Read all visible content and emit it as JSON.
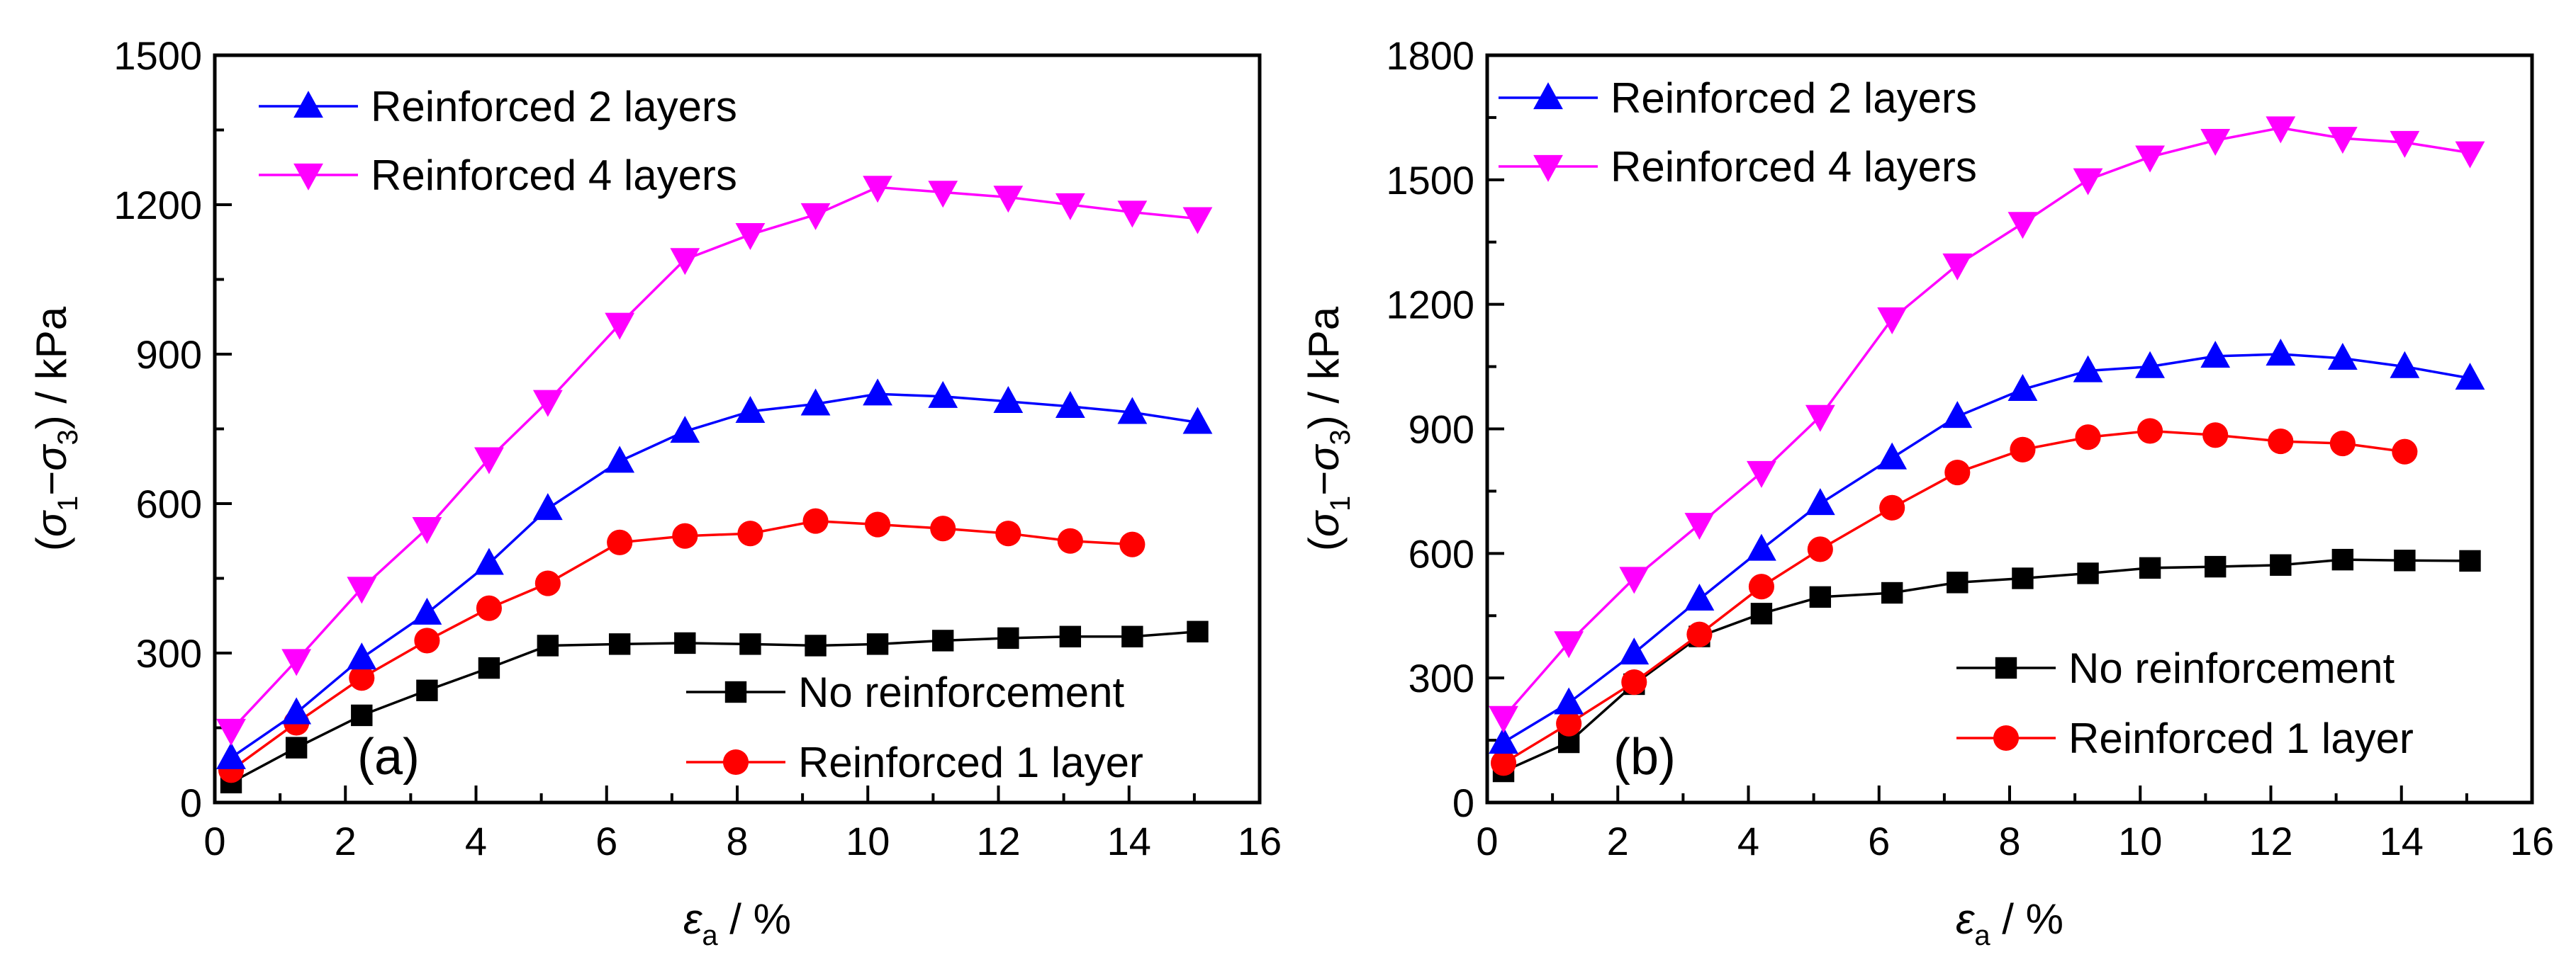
{
  "chart_data": [
    {
      "type": "line",
      "panel_label": "(a)",
      "xlabel": "εa / %",
      "ylabel": "(σ1−σ3) / kPa",
      "xlim": [
        0,
        16
      ],
      "ylim": [
        0,
        1500
      ],
      "xticks": [
        0,
        2,
        4,
        6,
        8,
        10,
        12,
        14,
        16
      ],
      "yticks": [
        0,
        300,
        600,
        900,
        1200,
        1500
      ],
      "legend_top": [
        "Reinforced 2 layers",
        "Reinforced 4 layers"
      ],
      "legend_bottom": [
        "No reinforcement",
        "Reinforced 1 layer"
      ],
      "series": [
        {
          "name": "No reinforcement",
          "color": "#000000",
          "marker": "square",
          "x": [
            0.25,
            1.25,
            2.25,
            3.25,
            4.2,
            5.1,
            6.2,
            7.2,
            8.2,
            9.2,
            10.15,
            11.15,
            12.15,
            13.1,
            14.05,
            15.05
          ],
          "y": [
            40,
            110,
            175,
            225,
            270,
            315,
            318,
            320,
            318,
            315,
            318,
            325,
            330,
            333,
            333,
            343
          ]
        },
        {
          "name": "Reinforced 1 layer",
          "color": "#ff0000",
          "marker": "circle",
          "x": [
            0.25,
            1.25,
            2.25,
            3.25,
            4.2,
            5.1,
            6.2,
            7.2,
            8.2,
            9.2,
            10.15,
            11.15,
            12.15,
            13.1,
            14.05
          ],
          "y": [
            65,
            160,
            250,
            325,
            390,
            440,
            522,
            535,
            540,
            565,
            558,
            550,
            540,
            525,
            518
          ]
        },
        {
          "name": "Reinforced 2 layers",
          "color": "#0000ff",
          "marker": "triangle-up",
          "x": [
            0.25,
            1.25,
            2.25,
            3.25,
            4.2,
            5.1,
            6.2,
            7.2,
            8.2,
            9.2,
            10.15,
            11.15,
            12.15,
            13.1,
            14.05,
            15.05
          ],
          "y": [
            90,
            180,
            290,
            380,
            480,
            590,
            685,
            745,
            785,
            800,
            820,
            815,
            805,
            795,
            783,
            763
          ]
        },
        {
          "name": "Reinforced 4 layers",
          "color": "#ff00ff",
          "marker": "triangle-down",
          "x": [
            0.25,
            1.25,
            2.25,
            3.25,
            4.2,
            5.1,
            6.2,
            7.2,
            8.2,
            9.2,
            10.15,
            11.15,
            12.15,
            13.1,
            14.05,
            15.05
          ],
          "y": [
            145,
            285,
            430,
            550,
            690,
            805,
            960,
            1090,
            1140,
            1180,
            1235,
            1225,
            1215,
            1200,
            1185,
            1172
          ]
        }
      ]
    },
    {
      "type": "line",
      "panel_label": "(b)",
      "xlabel": "εa / %",
      "ylabel": "(σ1−σ3) / kPa",
      "xlim": [
        0,
        16
      ],
      "ylim": [
        0,
        1800
      ],
      "xticks": [
        0,
        2,
        4,
        6,
        8,
        10,
        12,
        14,
        16
      ],
      "yticks": [
        0,
        300,
        600,
        900,
        1200,
        1500,
        1800
      ],
      "legend_top": [
        "Reinforced 2 layers",
        "Reinforced 4 layers"
      ],
      "legend_bottom": [
        "No reinforcement",
        "Reinforced 1 layer"
      ],
      "series": [
        {
          "name": "No reinforcement",
          "color": "#000000",
          "marker": "square",
          "x": [
            0.25,
            1.25,
            2.25,
            3.25,
            4.2,
            5.1,
            6.2,
            7.2,
            8.2,
            9.2,
            10.15,
            11.15,
            12.15,
            13.1,
            14.05,
            15.05
          ],
          "y": [
            75,
            145,
            285,
            400,
            455,
            495,
            505,
            530,
            540,
            552,
            565,
            568,
            572,
            585,
            583,
            582
          ]
        },
        {
          "name": "Reinforced 1 layer",
          "color": "#ff0000",
          "marker": "circle",
          "x": [
            0.25,
            1.25,
            2.25,
            3.25,
            4.2,
            5.1,
            6.2,
            7.2,
            8.2,
            9.2,
            10.15,
            11.15,
            12.15,
            13.1,
            14.05
          ],
          "y": [
            95,
            190,
            290,
            405,
            520,
            610,
            710,
            795,
            850,
            880,
            895,
            885,
            870,
            865,
            845
          ]
        },
        {
          "name": "Reinforced 2 layers",
          "color": "#0000ff",
          "marker": "triangle-up",
          "x": [
            0.25,
            1.25,
            2.25,
            3.25,
            4.2,
            5.1,
            6.2,
            7.2,
            8.2,
            9.2,
            10.15,
            11.15,
            12.15,
            13.1,
            14.05,
            15.05
          ],
          "y": [
            145,
            240,
            360,
            490,
            610,
            720,
            830,
            930,
            995,
            1040,
            1050,
            1075,
            1080,
            1070,
            1050,
            1022
          ]
        },
        {
          "name": "Reinforced 4 layers",
          "color": "#ff00ff",
          "marker": "triangle-down",
          "x": [
            0.25,
            1.25,
            2.25,
            3.25,
            4.2,
            5.1,
            6.2,
            7.2,
            8.2,
            9.2,
            10.15,
            11.15,
            12.15,
            13.1,
            14.05,
            15.05
          ],
          "y": [
            205,
            385,
            540,
            670,
            795,
            930,
            1165,
            1295,
            1395,
            1500,
            1555,
            1595,
            1625,
            1600,
            1590,
            1565
          ]
        }
      ]
    }
  ]
}
